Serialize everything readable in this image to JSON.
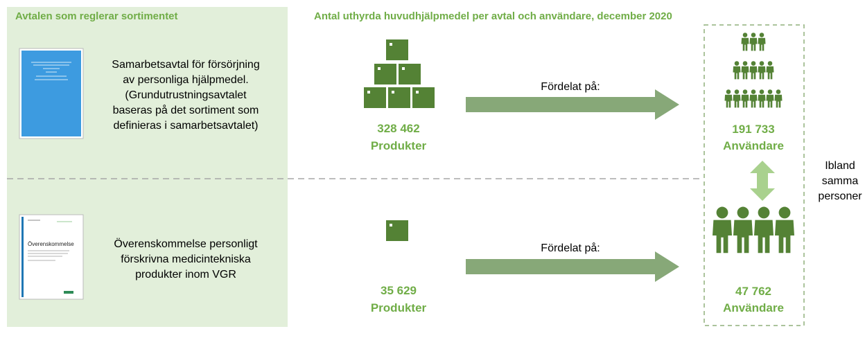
{
  "left_header": "Avtalen som reglerar sortimentet",
  "right_header": "Antal uthyrda huvudhjälpmedel per avtal och användare, december 2020",
  "rows": [
    {
      "description": [
        "Samarbetsavtal för försörjning",
        "av personliga hjälpmedel.",
        "(Grundutrustningsavtalet",
        "baseras på det sortiment som",
        "definieras i samarbetsavtalet)"
      ],
      "arrow_label": "Fördelat på:",
      "products": "328 462",
      "products_label": "Produkter",
      "users": "191 733",
      "users_label": "Användare"
    },
    {
      "description": [
        "Överenskommelse personligt",
        "förskrivna medicintekniska",
        "produkter inom VGR"
      ],
      "document_title": "Överenskommelse",
      "arrow_label": "Fördelat på:",
      "products": "35 629",
      "products_label": "Produkter",
      "users": "47 762",
      "users_label": "Användare"
    }
  ],
  "overlap_note": [
    "Ibland",
    "samma",
    "personer"
  ]
}
